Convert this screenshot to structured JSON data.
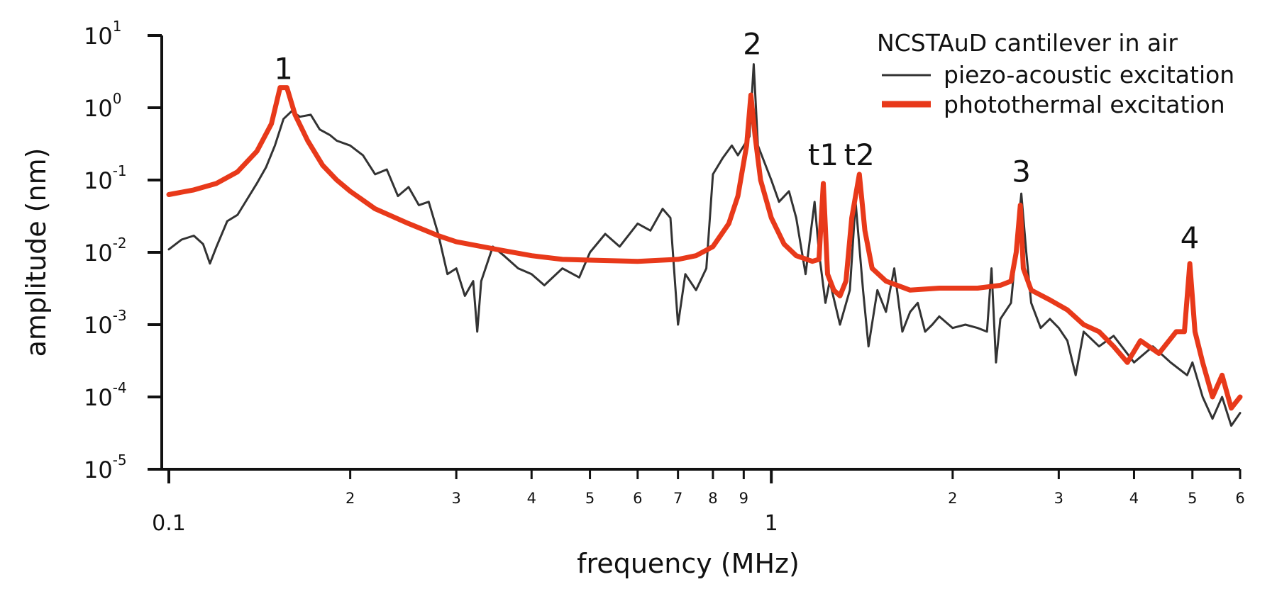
{
  "chart_data": {
    "type": "line",
    "title": "",
    "xlabel": "frequency (MHz)",
    "ylabel": "amplitude (nm)",
    "xscale": "log",
    "yscale": "log",
    "xlim": [
      0.1,
      6
    ],
    "ylim": [
      1e-05,
      10
    ],
    "x_major_ticks": [
      {
        "value": 0.1,
        "label": "0.1"
      },
      {
        "value": 1,
        "label": "1"
      }
    ],
    "x_minor_ticks": [
      {
        "value": 0.2,
        "label": "2"
      },
      {
        "value": 0.3,
        "label": "3"
      },
      {
        "value": 0.4,
        "label": "4"
      },
      {
        "value": 0.5,
        "label": "5"
      },
      {
        "value": 0.6,
        "label": "6"
      },
      {
        "value": 0.7,
        "label": "7"
      },
      {
        "value": 0.8,
        "label": "8"
      },
      {
        "value": 0.9,
        "label": "9"
      },
      {
        "value": 2,
        "label": "2"
      },
      {
        "value": 3,
        "label": "3"
      },
      {
        "value": 4,
        "label": "4"
      },
      {
        "value": 5,
        "label": "5"
      },
      {
        "value": 6,
        "label": "6"
      }
    ],
    "y_ticks": [
      {
        "value": 10,
        "base": "10",
        "exp": "1"
      },
      {
        "value": 1,
        "base": "10",
        "exp": "0"
      },
      {
        "value": 0.1,
        "base": "10",
        "exp": "-1"
      },
      {
        "value": 0.01,
        "base": "10",
        "exp": "-2"
      },
      {
        "value": 0.001,
        "base": "10",
        "exp": "-3"
      },
      {
        "value": 0.0001,
        "base": "10",
        "exp": "-4"
      },
      {
        "value": 1e-05,
        "base": "10",
        "exp": "-5"
      }
    ],
    "legend": {
      "title": "NCSTAuD cantilever in air",
      "position": "top-right"
    },
    "series": [
      {
        "name": "piezo-acoustic excitation",
        "color": "#333333",
        "line": "thin",
        "points": [
          [
            0.1,
            0.011
          ],
          [
            0.105,
            0.015
          ],
          [
            0.11,
            0.017
          ],
          [
            0.114,
            0.013
          ],
          [
            0.117,
            0.007
          ],
          [
            0.12,
            0.012
          ],
          [
            0.125,
            0.027
          ],
          [
            0.13,
            0.033
          ],
          [
            0.135,
            0.055
          ],
          [
            0.14,
            0.09
          ],
          [
            0.145,
            0.15
          ],
          [
            0.15,
            0.3
          ],
          [
            0.155,
            0.7
          ],
          [
            0.16,
            0.9
          ],
          [
            0.165,
            0.75
          ],
          [
            0.172,
            0.8
          ],
          [
            0.178,
            0.5
          ],
          [
            0.185,
            0.42
          ],
          [
            0.19,
            0.35
          ],
          [
            0.2,
            0.3
          ],
          [
            0.21,
            0.22
          ],
          [
            0.22,
            0.12
          ],
          [
            0.23,
            0.14
          ],
          [
            0.24,
            0.06
          ],
          [
            0.25,
            0.08
          ],
          [
            0.26,
            0.045
          ],
          [
            0.27,
            0.05
          ],
          [
            0.28,
            0.018
          ],
          [
            0.29,
            0.005
          ],
          [
            0.3,
            0.006
          ],
          [
            0.31,
            0.0025
          ],
          [
            0.32,
            0.004
          ],
          [
            0.325,
            0.0008
          ],
          [
            0.33,
            0.004
          ],
          [
            0.345,
            0.012
          ],
          [
            0.36,
            0.009
          ],
          [
            0.38,
            0.006
          ],
          [
            0.4,
            0.005
          ],
          [
            0.42,
            0.0035
          ],
          [
            0.45,
            0.006
          ],
          [
            0.48,
            0.0045
          ],
          [
            0.5,
            0.01
          ],
          [
            0.53,
            0.018
          ],
          [
            0.56,
            0.012
          ],
          [
            0.6,
            0.025
          ],
          [
            0.63,
            0.02
          ],
          [
            0.66,
            0.04
          ],
          [
            0.68,
            0.03
          ],
          [
            0.7,
            0.001
          ],
          [
            0.72,
            0.005
          ],
          [
            0.75,
            0.003
          ],
          [
            0.78,
            0.006
          ],
          [
            0.8,
            0.12
          ],
          [
            0.83,
            0.2
          ],
          [
            0.86,
            0.3
          ],
          [
            0.88,
            0.22
          ],
          [
            0.92,
            0.4
          ],
          [
            0.935,
            4.0
          ],
          [
            0.95,
            0.3
          ],
          [
            1.0,
            0.1
          ],
          [
            1.03,
            0.05
          ],
          [
            1.07,
            0.07
          ],
          [
            1.1,
            0.03
          ],
          [
            1.14,
            0.005
          ],
          [
            1.18,
            0.05
          ],
          [
            1.2,
            0.01
          ],
          [
            1.23,
            0.002
          ],
          [
            1.25,
            0.004
          ],
          [
            1.3,
            0.001
          ],
          [
            1.35,
            0.003
          ],
          [
            1.38,
            0.05
          ],
          [
            1.42,
            0.003
          ],
          [
            1.45,
            0.0005
          ],
          [
            1.5,
            0.003
          ],
          [
            1.55,
            0.0015
          ],
          [
            1.6,
            0.006
          ],
          [
            1.65,
            0.0008
          ],
          [
            1.7,
            0.0015
          ],
          [
            1.75,
            0.002
          ],
          [
            1.8,
            0.0008
          ],
          [
            1.85,
            0.001
          ],
          [
            1.9,
            0.0013
          ],
          [
            2.0,
            0.0009
          ],
          [
            2.1,
            0.001
          ],
          [
            2.2,
            0.0009
          ],
          [
            2.28,
            0.0008
          ],
          [
            2.32,
            0.006
          ],
          [
            2.36,
            0.0003
          ],
          [
            2.4,
            0.0012
          ],
          [
            2.5,
            0.002
          ],
          [
            2.6,
            0.065
          ],
          [
            2.65,
            0.01
          ],
          [
            2.7,
            0.002
          ],
          [
            2.8,
            0.0009
          ],
          [
            2.9,
            0.0012
          ],
          [
            3.0,
            0.0009
          ],
          [
            3.1,
            0.0006
          ],
          [
            3.2,
            0.0002
          ],
          [
            3.3,
            0.0008
          ],
          [
            3.5,
            0.0005
          ],
          [
            3.7,
            0.0007
          ],
          [
            4.0,
            0.0003
          ],
          [
            4.3,
            0.0005
          ],
          [
            4.6,
            0.0003
          ],
          [
            4.9,
            0.0002
          ],
          [
            5.0,
            0.0003
          ],
          [
            5.2,
            0.0001
          ],
          [
            5.4,
            5e-05
          ],
          [
            5.6,
            0.0001
          ],
          [
            5.8,
            4e-05
          ],
          [
            6.0,
            6e-05
          ]
        ]
      },
      {
        "name": "photothermal excitation",
        "color": "#e8391a",
        "line": "thick",
        "points": [
          [
            0.1,
            0.063
          ],
          [
            0.11,
            0.073
          ],
          [
            0.12,
            0.09
          ],
          [
            0.13,
            0.13
          ],
          [
            0.14,
            0.25
          ],
          [
            0.148,
            0.6
          ],
          [
            0.153,
            1.9
          ],
          [
            0.157,
            1.9
          ],
          [
            0.162,
            0.8
          ],
          [
            0.17,
            0.35
          ],
          [
            0.18,
            0.16
          ],
          [
            0.19,
            0.1
          ],
          [
            0.2,
            0.07
          ],
          [
            0.22,
            0.04
          ],
          [
            0.25,
            0.025
          ],
          [
            0.28,
            0.017
          ],
          [
            0.3,
            0.014
          ],
          [
            0.35,
            0.011
          ],
          [
            0.4,
            0.009
          ],
          [
            0.45,
            0.008
          ],
          [
            0.5,
            0.0078
          ],
          [
            0.6,
            0.0075
          ],
          [
            0.7,
            0.008
          ],
          [
            0.75,
            0.009
          ],
          [
            0.8,
            0.012
          ],
          [
            0.85,
            0.025
          ],
          [
            0.88,
            0.06
          ],
          [
            0.91,
            0.3
          ],
          [
            0.925,
            1.5
          ],
          [
            0.94,
            0.4
          ],
          [
            0.96,
            0.1
          ],
          [
            1.0,
            0.03
          ],
          [
            1.05,
            0.013
          ],
          [
            1.1,
            0.009
          ],
          [
            1.17,
            0.0075
          ],
          [
            1.2,
            0.008
          ],
          [
            1.22,
            0.09
          ],
          [
            1.24,
            0.005
          ],
          [
            1.27,
            0.003
          ],
          [
            1.3,
            0.0025
          ],
          [
            1.33,
            0.004
          ],
          [
            1.36,
            0.03
          ],
          [
            1.4,
            0.12
          ],
          [
            1.43,
            0.02
          ],
          [
            1.47,
            0.006
          ],
          [
            1.55,
            0.004
          ],
          [
            1.7,
            0.003
          ],
          [
            1.9,
            0.0032
          ],
          [
            2.2,
            0.0032
          ],
          [
            2.4,
            0.0035
          ],
          [
            2.5,
            0.004
          ],
          [
            2.55,
            0.01
          ],
          [
            2.59,
            0.045
          ],
          [
            2.62,
            0.006
          ],
          [
            2.7,
            0.003
          ],
          [
            2.9,
            0.0022
          ],
          [
            3.1,
            0.0016
          ],
          [
            3.3,
            0.001
          ],
          [
            3.5,
            0.0008
          ],
          [
            3.7,
            0.0005
          ],
          [
            3.9,
            0.0003
          ],
          [
            4.1,
            0.0006
          ],
          [
            4.4,
            0.0004
          ],
          [
            4.7,
            0.0008
          ],
          [
            4.85,
            0.0008
          ],
          [
            4.95,
            0.007
          ],
          [
            5.05,
            0.0008
          ],
          [
            5.2,
            0.0003
          ],
          [
            5.4,
            0.0001
          ],
          [
            5.6,
            0.0002
          ],
          [
            5.8,
            7e-05
          ],
          [
            6.0,
            0.0001
          ]
        ]
      }
    ],
    "annotations": [
      {
        "text": "1",
        "x": 0.155,
        "y": 2.5
      },
      {
        "text": "2",
        "x": 0.93,
        "y": 5.5
      },
      {
        "text": "t1",
        "x": 1.22,
        "y": 0.16
      },
      {
        "text": "t2",
        "x": 1.4,
        "y": 0.16
      },
      {
        "text": "3",
        "x": 2.6,
        "y": 0.095
      },
      {
        "text": "4",
        "x": 4.95,
        "y": 0.0115
      }
    ]
  }
}
